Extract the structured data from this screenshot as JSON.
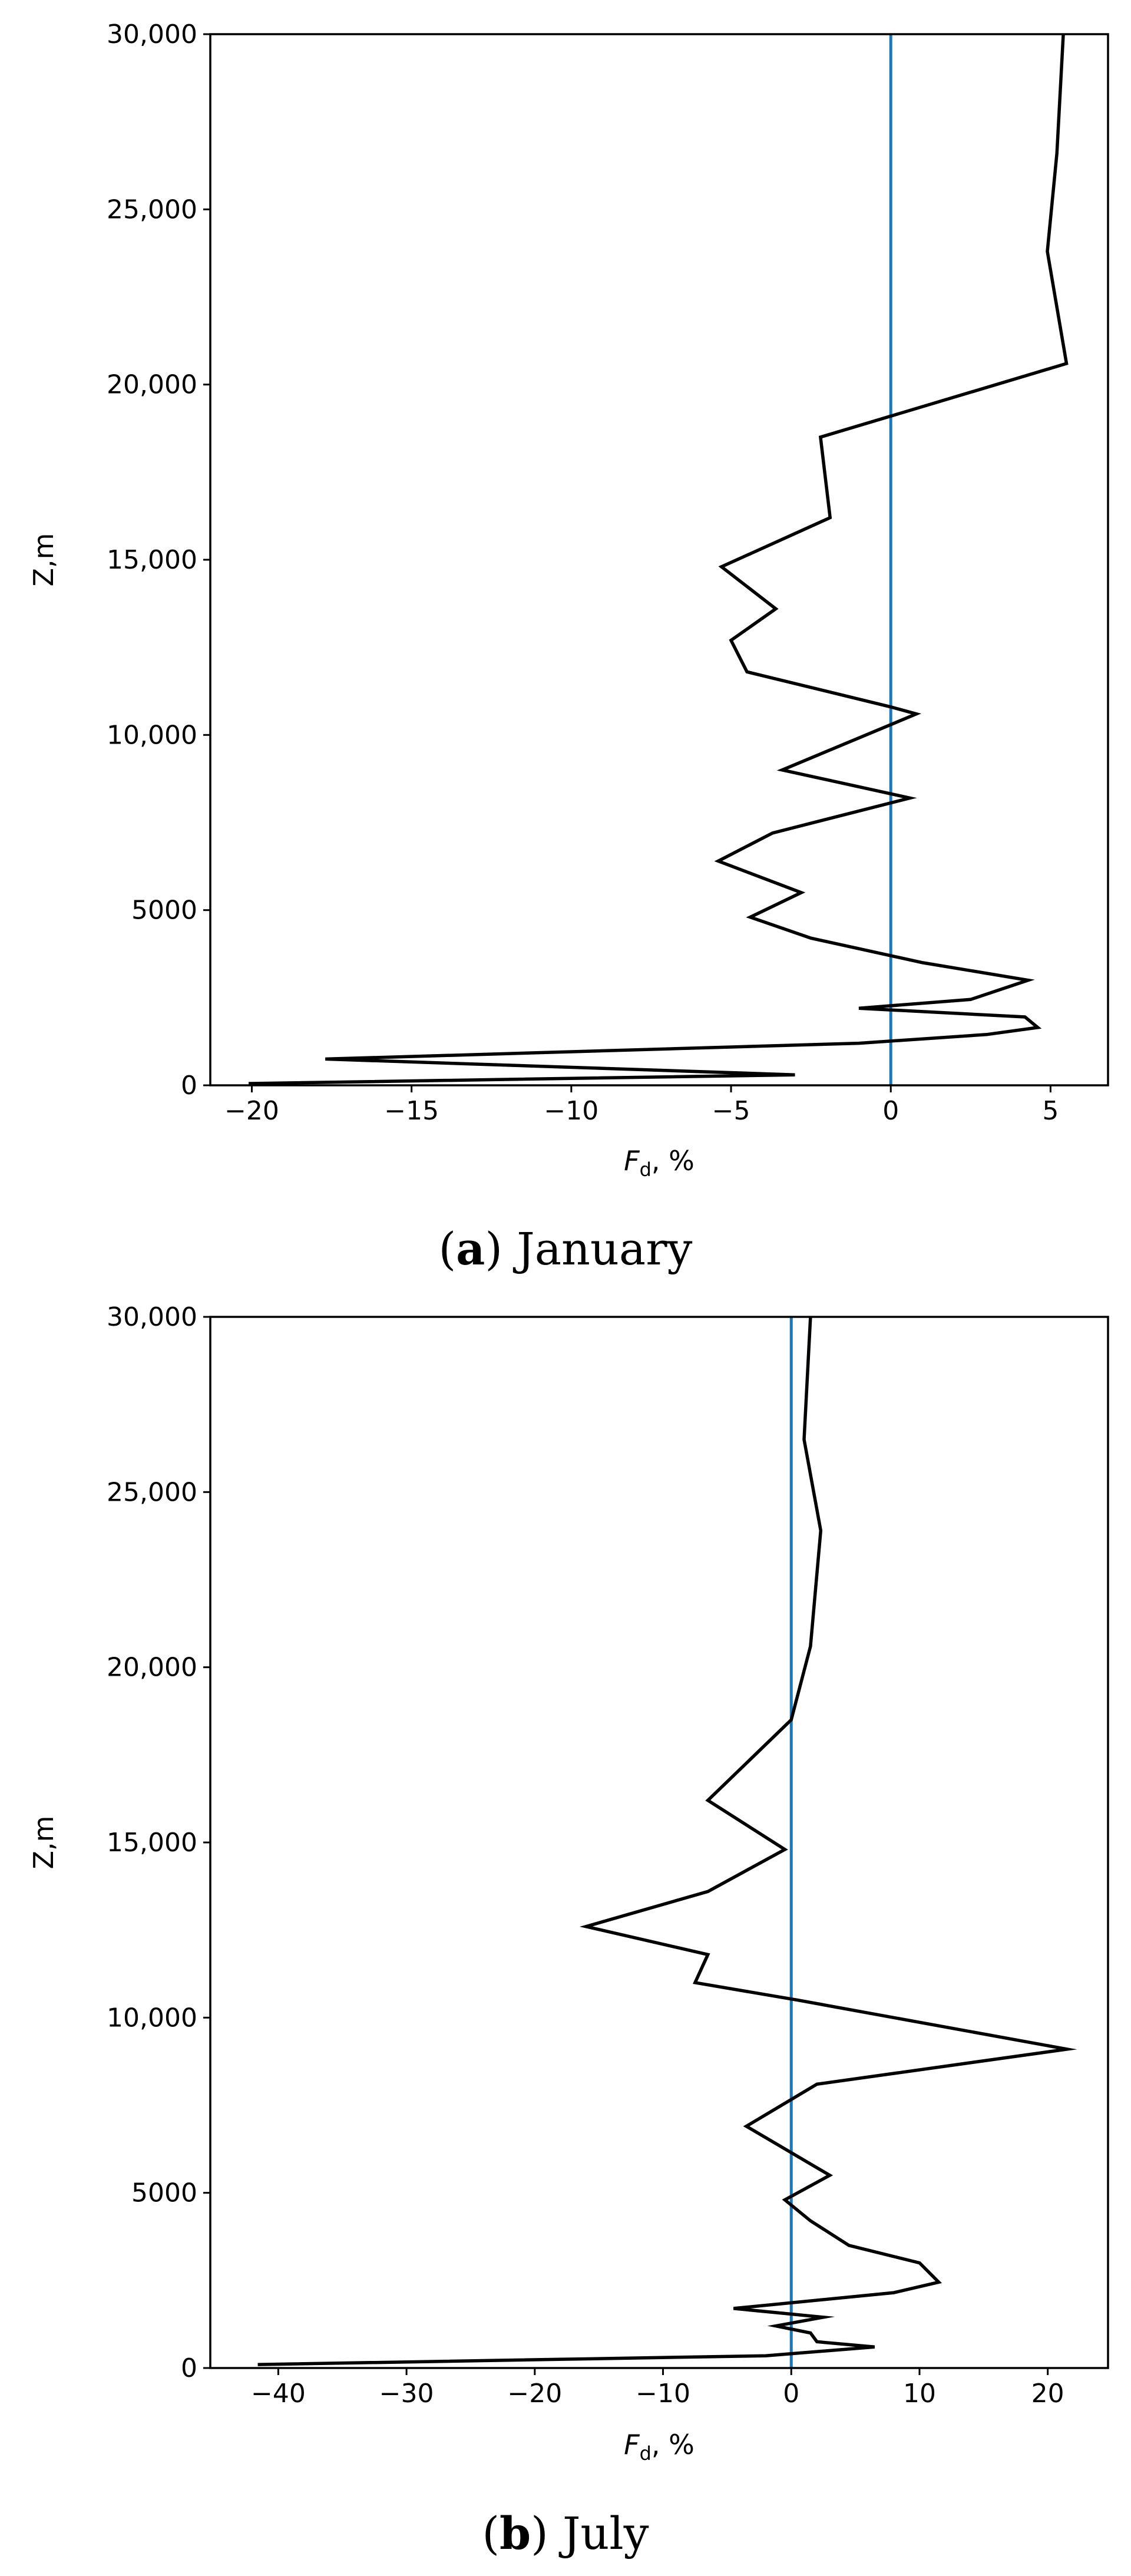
{
  "chart_data": [
    {
      "type": "line",
      "caption_letter": "a",
      "caption_text": ") January",
      "xlabel_var": "F",
      "xlabel_sub": "d",
      "xlabel_unit": ", %",
      "ylabel": "Z,m",
      "xlim": [
        -21.3,
        6.8
      ],
      "ylim": [
        0,
        30000
      ],
      "xticks": [
        {
          "value": -20,
          "label": "−20"
        },
        {
          "value": -15,
          "label": "−15"
        },
        {
          "value": -10,
          "label": "−10"
        },
        {
          "value": -5,
          "label": "−5"
        },
        {
          "value": 0,
          "label": "0"
        },
        {
          "value": 5,
          "label": "5"
        }
      ],
      "yticks": [
        {
          "value": 0,
          "label": "0"
        },
        {
          "value": 5000,
          "label": "5000"
        },
        {
          "value": 10000,
          "label": "10,000"
        },
        {
          "value": 15000,
          "label": "15,000"
        },
        {
          "value": 20000,
          "label": "20,000"
        },
        {
          "value": 25000,
          "label": "25,000"
        },
        {
          "value": 30000,
          "label": "30,000"
        }
      ],
      "reference_line": {
        "x": 0,
        "color": "#1f77b4"
      },
      "series_color": "#000000",
      "series": [
        {
          "x": [
            -20.1,
            -3.0,
            -17.7,
            -1.0,
            3.0,
            4.6,
            4.2,
            -1.0,
            2.5,
            4.3,
            1.0,
            -2.5,
            -4.4,
            -2.8,
            -5.4,
            -3.7,
            0.6,
            -3.4,
            0.8,
            0.0,
            -4.5,
            -5.0,
            -3.6,
            -5.3,
            -1.9,
            -2.2,
            5.5,
            4.9,
            5.2,
            5.4
          ],
          "y": [
            50,
            300,
            750,
            1200,
            1450,
            1650,
            1950,
            2200,
            2450,
            3000,
            3500,
            4200,
            4800,
            5500,
            6400,
            7200,
            8200,
            9000,
            10600,
            10800,
            11800,
            12700,
            13600,
            14800,
            16200,
            18500,
            20600,
            23800,
            26600,
            30000
          ]
        }
      ]
    },
    {
      "type": "line",
      "caption_letter": "b",
      "caption_text": ") July",
      "xlabel_var": "F",
      "xlabel_sub": "d",
      "xlabel_unit": ", %",
      "ylabel": "Z,m",
      "xlim": [
        -45.3,
        24.7
      ],
      "ylim": [
        0,
        30000
      ],
      "xticks": [
        {
          "value": -40,
          "label": "−40"
        },
        {
          "value": -30,
          "label": "−30"
        },
        {
          "value": -20,
          "label": "−20"
        },
        {
          "value": -10,
          "label": "−10"
        },
        {
          "value": 0,
          "label": "0"
        },
        {
          "value": 10,
          "label": "10"
        },
        {
          "value": 20,
          "label": "20"
        }
      ],
      "yticks": [
        {
          "value": 0,
          "label": "0"
        },
        {
          "value": 5000,
          "label": "5000"
        },
        {
          "value": 10000,
          "label": "10,000"
        },
        {
          "value": 15000,
          "label": "15,000"
        },
        {
          "value": 20000,
          "label": "20,000"
        },
        {
          "value": 25000,
          "label": "25,000"
        },
        {
          "value": 30000,
          "label": "30,000"
        }
      ],
      "reference_line": {
        "x": 0,
        "color": "#1f77b4"
      },
      "series_color": "#000000",
      "series": [
        {
          "x": [
            -41.6,
            -2.0,
            6.5,
            2.0,
            1.5,
            -1.2,
            2.5,
            -4.5,
            8.0,
            11.5,
            10.0,
            4.5,
            1.5,
            -0.5,
            3.0,
            -3.5,
            2.0,
            21.5,
            0.5,
            -7.5,
            -6.5,
            -16.0,
            -6.5,
            -0.5,
            -6.5,
            0.0,
            1.5,
            2.3,
            1.0,
            1.5
          ],
          "y": [
            100,
            350,
            600,
            750,
            1000,
            1200,
            1450,
            1700,
            2150,
            2450,
            3000,
            3500,
            4200,
            4800,
            5500,
            6900,
            8100,
            9100,
            10500,
            11000,
            11800,
            12600,
            13600,
            14800,
            16200,
            18500,
            20600,
            23900,
            26500,
            30000
          ]
        }
      ]
    }
  ]
}
